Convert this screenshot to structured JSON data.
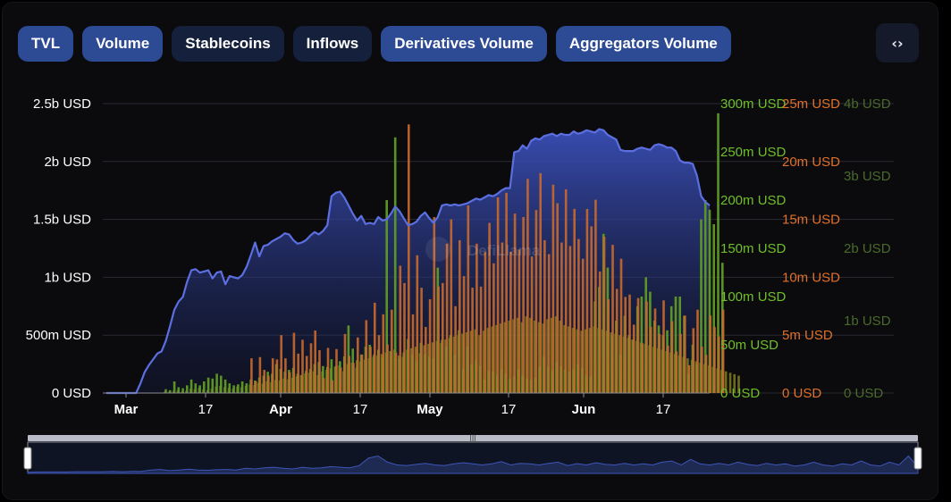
{
  "tabs": [
    {
      "label": "TVL",
      "active": true
    },
    {
      "label": "Volume",
      "active": true
    },
    {
      "label": "Stablecoins",
      "active": false
    },
    {
      "label": "Inflows",
      "active": false
    },
    {
      "label": "Derivatives Volume",
      "active": true
    },
    {
      "label": "Aggregators Volume",
      "active": true
    }
  ],
  "embed_icon": "code-brackets-icon",
  "watermark": "DefiLlama",
  "colors": {
    "tvl": "#5b6fe0",
    "volume": "#5f9a25",
    "derivatives": "#c8692e",
    "aggregators": "#7f7d1e",
    "tab_active": "#2d4a94",
    "tab_inactive": "#14203c"
  },
  "chart_data": {
    "type": "area",
    "x_tick_labels": [
      "Mar",
      "17",
      "Apr",
      "17",
      "May",
      "17",
      "Jun",
      "17"
    ],
    "axes": [
      {
        "name": "TVL",
        "color": "#ffffff",
        "ticks": [
          "0 USD",
          "500m USD",
          "1b USD",
          "1.5b USD",
          "2b USD",
          "2.5b USD"
        ],
        "range": [
          0,
          2500000000
        ]
      },
      {
        "name": "Volume",
        "color": "#6fbf2a",
        "ticks": [
          "0 USD",
          "50m USD",
          "100m USD",
          "150m USD",
          "200m USD",
          "250m USD",
          "300m USD"
        ],
        "range": [
          0,
          300000000
        ]
      },
      {
        "name": "Derivatives Volume",
        "color": "#e0702a",
        "ticks": [
          "0 USD",
          "5m USD",
          "10m USD",
          "15m USD",
          "20m USD",
          "25m USD"
        ],
        "range": [
          0,
          25000000
        ]
      },
      {
        "name": "Aggregators Volume",
        "color": "#4a6a2a",
        "ticks": [
          "0 USD",
          "1b USD",
          "2b USD",
          "3b USD",
          "4b USD"
        ],
        "range": [
          0,
          4000000000
        ]
      }
    ],
    "series": [
      {
        "name": "TVL",
        "unit": "USD",
        "values": [
          0,
          0,
          0,
          0,
          0,
          0,
          0,
          0,
          80000000,
          180000000,
          240000000,
          290000000,
          340000000,
          360000000,
          450000000,
          580000000,
          720000000,
          790000000,
          830000000,
          960000000,
          1060000000,
          1070000000,
          1040000000,
          1050000000,
          1060000000,
          990000000,
          1040000000,
          1050000000,
          940000000,
          1010000000,
          1000000000,
          990000000,
          1020000000,
          1090000000,
          1190000000,
          1300000000,
          1180000000,
          1270000000,
          1280000000,
          1310000000,
          1330000000,
          1350000000,
          1380000000,
          1370000000,
          1320000000,
          1290000000,
          1300000000,
          1320000000,
          1360000000,
          1390000000,
          1370000000,
          1400000000,
          1450000000,
          1700000000,
          1730000000,
          1740000000,
          1690000000,
          1620000000,
          1550000000,
          1490000000,
          1530000000,
          1460000000,
          1470000000,
          1460000000,
          1520000000,
          1490000000,
          1500000000,
          1550000000,
          1610000000,
          1570000000,
          1510000000,
          1450000000,
          1460000000,
          1480000000,
          1530000000,
          1560000000,
          1510000000,
          1470000000,
          1520000000,
          1620000000,
          1630000000,
          1620000000,
          1630000000,
          1620000000,
          1630000000,
          1640000000,
          1660000000,
          1680000000,
          1670000000,
          1690000000,
          1710000000,
          1700000000,
          1720000000,
          1750000000,
          1770000000,
          1770000000,
          2080000000,
          2090000000,
          2140000000,
          2110000000,
          2180000000,
          2200000000,
          2190000000,
          2220000000,
          2230000000,
          2240000000,
          2220000000,
          2240000000,
          2230000000,
          2230000000,
          2260000000,
          2240000000,
          2250000000,
          2270000000,
          2260000000,
          2250000000,
          2280000000,
          2270000000,
          2230000000,
          2210000000,
          2190000000,
          2100000000,
          2090000000,
          2090000000,
          2090000000,
          2110000000,
          2120000000,
          2110000000,
          2100000000,
          2140000000,
          2150000000,
          2140000000,
          2120000000,
          2120000000,
          2090000000,
          2010000000,
          1990000000,
          1990000000,
          1980000000,
          1880000000,
          1700000000,
          1650000000,
          1620000000
        ]
      },
      {
        "name": "Volume",
        "unit": "USD",
        "values": [
          0,
          0,
          0,
          0,
          0,
          0,
          0,
          0,
          0,
          0,
          0,
          0,
          0,
          0,
          4000000,
          3000000,
          12000000,
          6000000,
          5000000,
          8000000,
          14000000,
          10000000,
          8000000,
          12000000,
          16000000,
          15000000,
          20000000,
          18000000,
          14000000,
          10000000,
          8000000,
          9000000,
          12000000,
          10000000,
          14000000,
          13000000,
          16000000,
          18000000,
          22000000,
          20000000,
          30000000,
          25000000,
          22000000,
          24000000,
          26000000,
          20000000,
          18000000,
          23000000,
          25000000,
          30000000,
          32000000,
          28000000,
          27000000,
          35000000,
          28000000,
          33000000,
          38000000,
          70000000,
          46000000,
          34000000,
          40000000,
          48000000,
          50000000,
          40000000,
          45000000,
          37000000,
          200000000,
          43000000,
          265000000,
          36000000,
          42000000,
          56000000,
          40000000,
          33000000,
          52000000,
          40000000,
          38000000,
          36000000,
          130000000,
          55000000,
          48000000,
          60000000,
          40000000,
          65000000,
          25000000,
          48000000,
          30000000,
          34000000,
          28000000,
          14000000,
          23000000,
          22000000,
          18000000,
          25000000,
          20000000,
          15000000,
          17000000,
          25000000,
          18000000,
          15000000,
          14000000,
          16000000,
          27000000,
          38000000,
          27000000,
          23000000,
          32000000,
          28000000,
          24000000,
          22000000,
          25000000,
          30000000,
          26000000,
          18000000,
          17000000,
          95000000,
          110000000,
          165000000,
          130000000,
          60000000,
          75000000,
          40000000,
          80000000,
          60000000,
          55000000,
          90000000,
          100000000,
          120000000,
          105000000,
          75000000,
          70000000,
          60000000,
          65000000,
          90000000,
          100000000,
          100000000,
          80000000,
          20000000,
          50000000,
          30000000,
          180000000,
          200000000,
          190000000,
          175000000,
          290000000,
          135000000
        ]
      },
      {
        "name": "Derivatives Volume",
        "unit": "USD",
        "values": [
          0,
          0,
          0,
          0,
          0,
          0,
          0,
          0,
          0,
          0,
          0,
          0,
          0,
          0,
          0,
          0,
          0,
          0,
          0,
          0,
          0,
          0,
          0,
          0,
          0,
          0,
          0,
          0,
          0,
          0,
          0,
          0,
          0,
          0,
          3000000,
          1000000,
          3100000,
          2000000,
          1500000,
          3000000,
          2900000,
          5000000,
          3000000,
          1800000,
          5200000,
          3400000,
          4600000,
          3200000,
          4300000,
          5400000,
          3700000,
          1300000,
          3900000,
          1100000,
          3800000,
          2200000,
          5100000,
          3200000,
          2600000,
          4800000,
          3300000,
          6300000,
          4000000,
          7800000,
          5000000,
          6800000,
          4200000,
          7200000,
          3500000,
          11000000,
          9500000,
          23200000,
          6800000,
          11900000,
          9100000,
          5700000,
          8100000,
          15200000,
          9200000,
          9500000,
          12900000,
          15000000,
          7500000,
          13200000,
          10100000,
          16200000,
          9100000,
          12900000,
          9200000,
          12200000,
          14700000,
          11200000,
          16900000,
          13000000,
          17300000,
          12200000,
          15500000,
          12400000,
          15200000,
          18500000,
          11800000,
          15800000,
          19000000,
          13200000,
          12000000,
          18000000,
          16400000,
          13000000,
          17600000,
          12700000,
          15900000,
          13300000,
          11600000,
          15900000,
          14400000,
          16700000,
          10500000,
          13500000,
          8100000,
          12800000,
          9000000,
          11600000,
          8300000,
          8500000,
          5900000,
          8200000,
          4300000,
          7900000,
          5700000,
          7300000,
          5100000,
          8000000,
          4100000,
          6200000,
          3600000,
          5100000,
          6700000,
          2400000,
          5600000,
          7200000,
          4000000,
          3300000,
          6700000,
          5700000,
          4900000,
          7200000
        ]
      },
      {
        "name": "Aggregators Volume",
        "unit": "USD",
        "values": [
          0,
          0,
          0,
          0,
          0,
          0,
          0,
          0,
          0,
          0,
          0,
          0,
          0,
          0,
          20000000,
          20000000,
          30000000,
          40000000,
          20000000,
          30000000,
          60000000,
          50000000,
          70000000,
          50000000,
          40000000,
          60000000,
          90000000,
          100000000,
          80000000,
          70000000,
          60000000,
          90000000,
          80000000,
          100000000,
          120000000,
          110000000,
          140000000,
          130000000,
          160000000,
          150000000,
          180000000,
          170000000,
          200000000,
          190000000,
          210000000,
          230000000,
          250000000,
          270000000,
          280000000,
          300000000,
          250000000,
          300000000,
          320000000,
          340000000,
          360000000,
          380000000,
          300000000,
          400000000,
          420000000,
          350000000,
          440000000,
          460000000,
          480000000,
          500000000,
          520000000,
          540000000,
          560000000,
          580000000,
          600000000,
          520000000,
          500000000,
          600000000,
          620000000,
          640000000,
          550000000,
          660000000,
          680000000,
          700000000,
          720000000,
          690000000,
          740000000,
          760000000,
          780000000,
          800000000,
          820000000,
          840000000,
          860000000,
          880000000,
          800000000,
          860000000,
          900000000,
          920000000,
          940000000,
          960000000,
          980000000,
          1000000000,
          1020000000,
          1040000000,
          980000000,
          1060000000,
          1040000000,
          1000000000,
          980000000,
          960000000,
          1020000000,
          1040000000,
          1060000000,
          1000000000,
          940000000,
          920000000,
          900000000,
          880000000,
          860000000,
          880000000,
          900000000,
          920000000,
          900000000,
          880000000,
          860000000,
          840000000,
          820000000,
          800000000,
          780000000,
          760000000,
          740000000,
          720000000,
          700000000,
          680000000,
          660000000,
          640000000,
          620000000,
          600000000,
          580000000,
          560000000,
          540000000,
          520000000,
          500000000,
          480000000,
          460000000,
          440000000,
          420000000,
          400000000,
          380000000,
          360000000,
          340000000,
          320000000,
          300000000,
          280000000,
          260000000,
          240000000
        ]
      }
    ],
    "grid": true,
    "overview": {
      "values": [
        0.04,
        0.05,
        0.05,
        0.05,
        0.05,
        0.06,
        0.06,
        0.06,
        0.06,
        0.07,
        0.06,
        0.07,
        0.07,
        0.12,
        0.14,
        0.1,
        0.12,
        0.15,
        0.12,
        0.11,
        0.13,
        0.14,
        0.12,
        0.18,
        0.16,
        0.2,
        0.22,
        0.18,
        0.16,
        0.22,
        0.18,
        0.2,
        0.24,
        0.22,
        0.2,
        0.28,
        0.55,
        0.62,
        0.4,
        0.3,
        0.28,
        0.32,
        0.36,
        0.3,
        0.28,
        0.34,
        0.38,
        0.34,
        0.3,
        0.34,
        0.42,
        0.3,
        0.36,
        0.34,
        0.3,
        0.36,
        0.4,
        0.28,
        0.35,
        0.3,
        0.38,
        0.32,
        0.3,
        0.36,
        0.3,
        0.34,
        0.3,
        0.4,
        0.44,
        0.3,
        0.5,
        0.34,
        0.3,
        0.36,
        0.3,
        0.4,
        0.32,
        0.28,
        0.36,
        0.3,
        0.34,
        0.26,
        0.3,
        0.4,
        0.3,
        0.26,
        0.34,
        0.3,
        0.44,
        0.3,
        0.26,
        0.4,
        0.3,
        0.62,
        0.22
      ]
    }
  }
}
